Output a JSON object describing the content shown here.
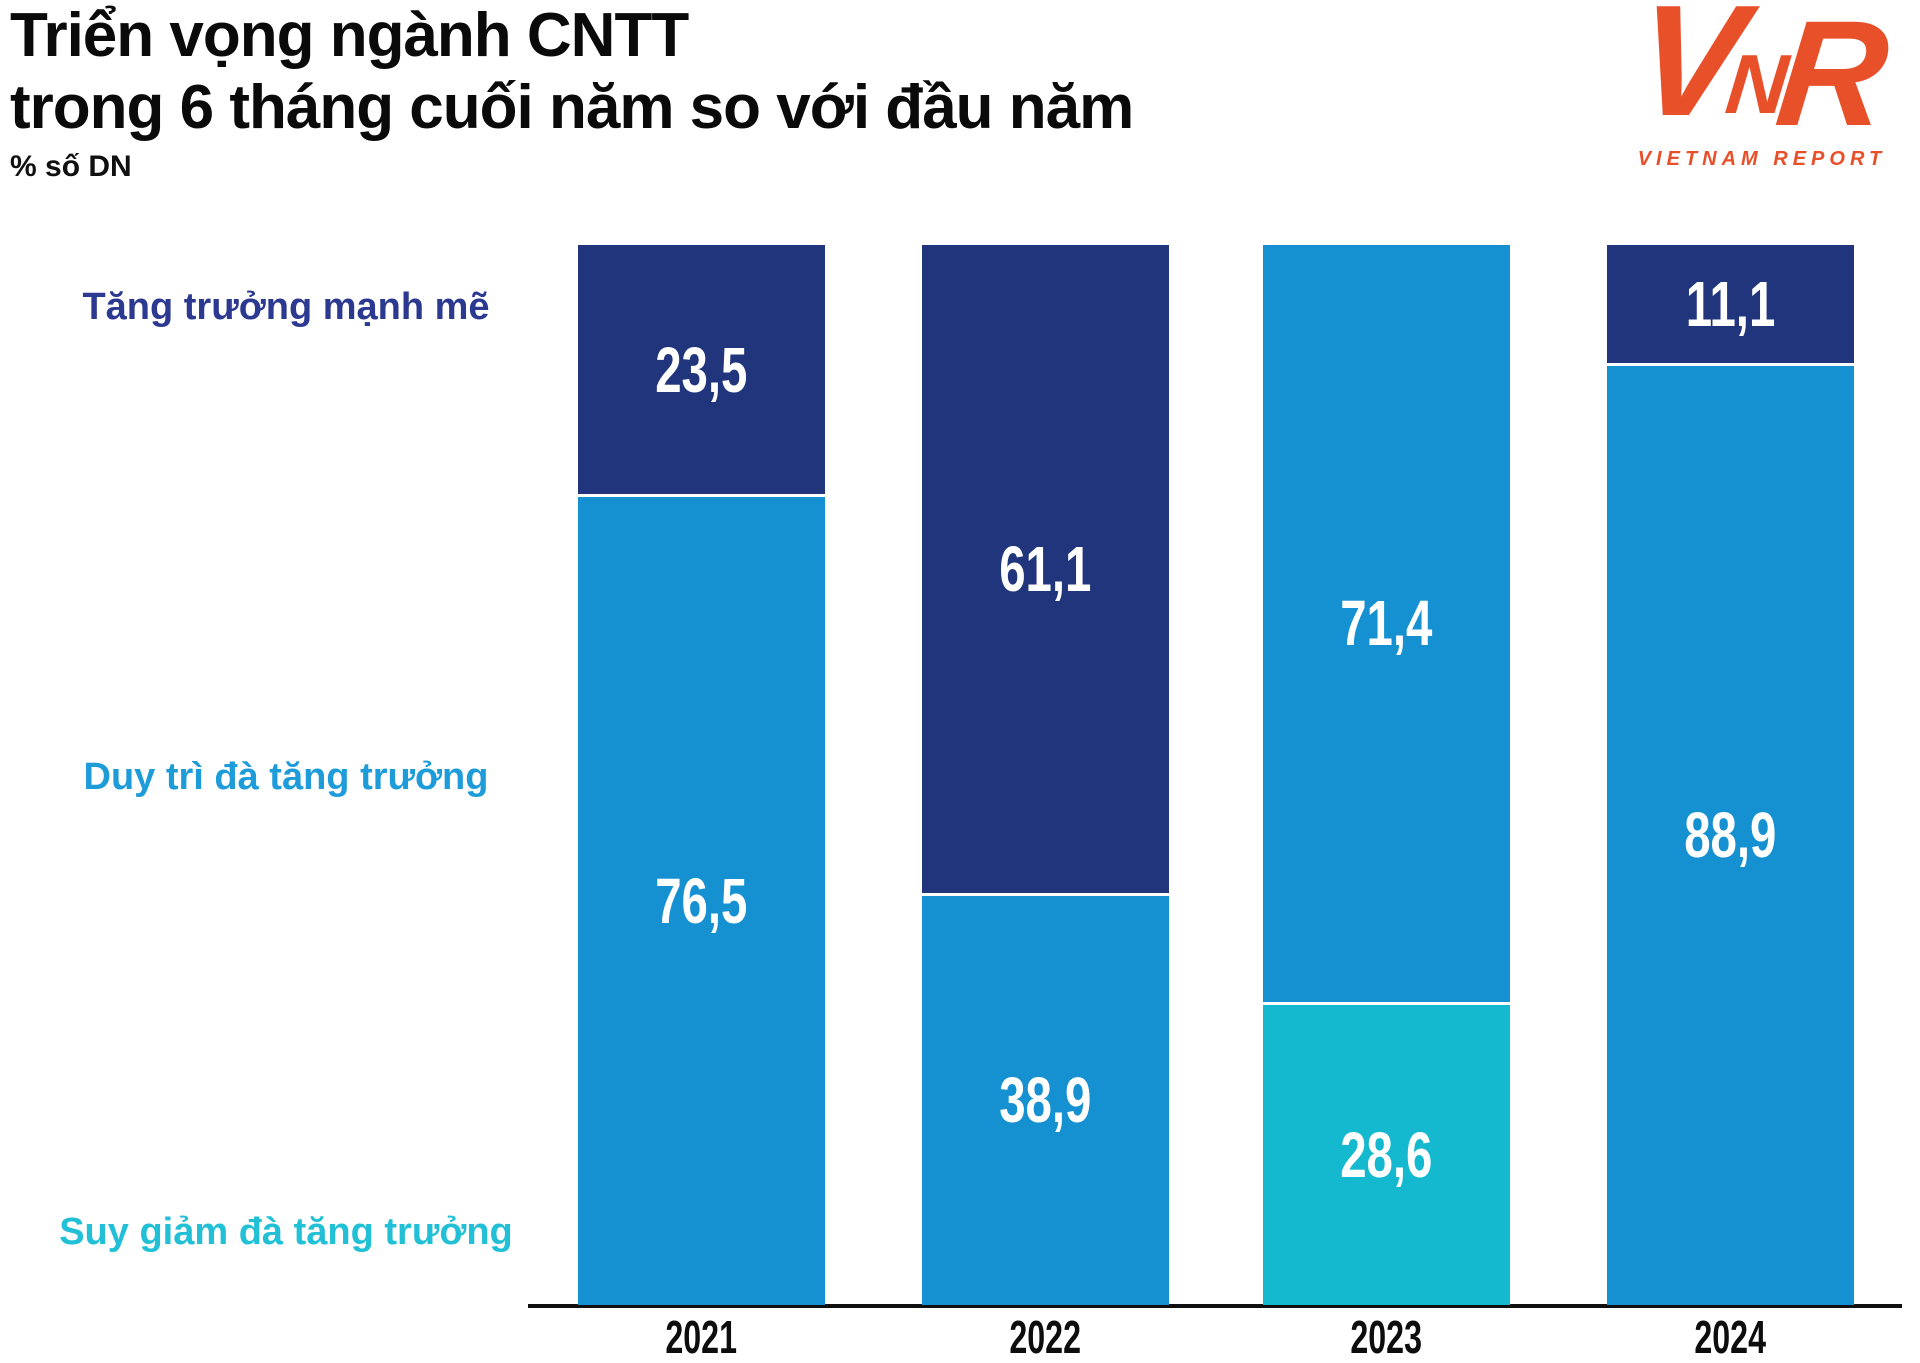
{
  "header": {
    "title_line1": "Triển vọng ngành CNTT",
    "title_line2": "trong 6 tháng cuối năm so với đầu năm",
    "unit_label": "% số DN"
  },
  "logo": {
    "letter_v": "V",
    "letter_n": "N",
    "letter_r": "R",
    "subtitle": "VIETNAM REPORT",
    "color": "#E8502A"
  },
  "legend": {
    "items": [
      {
        "label": "Tăng trưởng mạnh mẽ",
        "color": "#2B3990"
      },
      {
        "label": "Duy trì đà tăng trưởng",
        "color": "#1E9CD9"
      },
      {
        "label": "Suy giảm đà tăng trưởng",
        "color": "#22C0D6"
      }
    ]
  },
  "chart_data": {
    "type": "bar",
    "stacked": true,
    "title": "Triển vọng ngành CNTT trong 6 tháng cuối năm so với đầu năm",
    "ylabel": "% số DN",
    "ylim": [
      0,
      100
    ],
    "grid": false,
    "legend_position": "left",
    "decimal_separator": ",",
    "categories": [
      "2021",
      "2022",
      "2023",
      "2024"
    ],
    "series": [
      {
        "name": "Tăng trưởng mạnh mẽ",
        "color": "#21357C",
        "values": [
          23.5,
          61.1,
          0,
          11.1
        ]
      },
      {
        "name": "Duy trì đà tăng trưởng",
        "color": "#1591D1",
        "values": [
          76.5,
          38.9,
          71.4,
          88.9
        ]
      },
      {
        "name": "Suy giảm đà tăng trưởng",
        "color": "#14B9CF",
        "values": [
          0,
          0,
          28.6,
          0
        ]
      }
    ]
  }
}
